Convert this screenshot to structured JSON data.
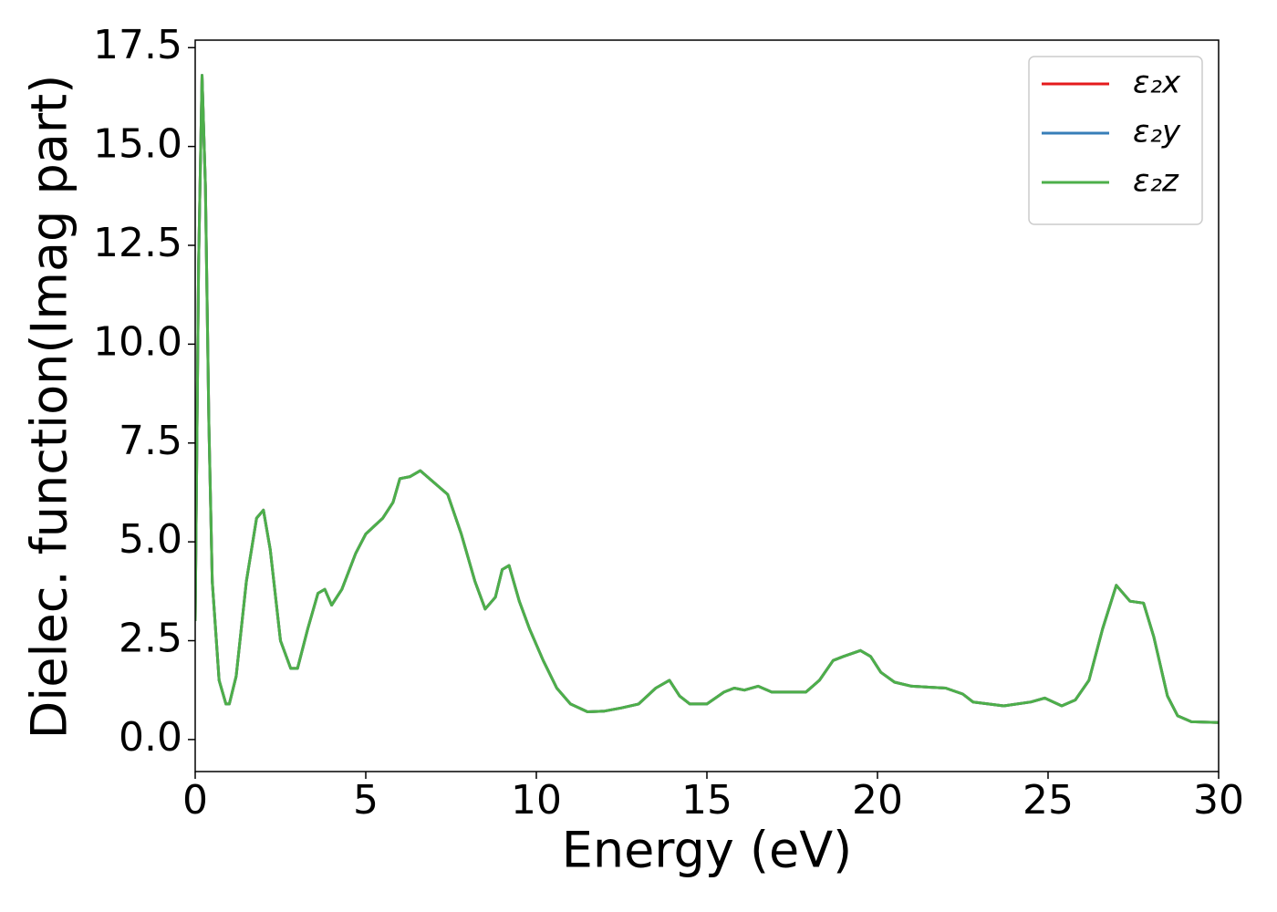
{
  "chart_data": {
    "type": "line",
    "xlabel": "Energy (eV)",
    "ylabel": "Dielec. function(Imag part)",
    "x": [
      0.0,
      0.1,
      0.2,
      0.3,
      0.4,
      0.5,
      0.7,
      0.9,
      1.0,
      1.2,
      1.5,
      1.8,
      2.0,
      2.2,
      2.5,
      2.8,
      3.0,
      3.3,
      3.6,
      3.8,
      4.0,
      4.3,
      4.7,
      5.0,
      5.5,
      5.8,
      6.0,
      6.3,
      6.6,
      7.0,
      7.4,
      7.8,
      8.2,
      8.5,
      8.8,
      9.0,
      9.2,
      9.5,
      9.8,
      10.2,
      10.6,
      11.0,
      11.5,
      12.0,
      12.5,
      13.0,
      13.5,
      13.9,
      14.2,
      14.5,
      15.0,
      15.5,
      15.8,
      16.1,
      16.5,
      16.9,
      17.5,
      17.9,
      18.3,
      18.7,
      19.0,
      19.5,
      19.8,
      20.1,
      20.5,
      21.0,
      22.0,
      22.5,
      22.8,
      23.7,
      24.5,
      24.9,
      25.4,
      25.8,
      26.2,
      26.6,
      27.0,
      27.4,
      27.8,
      28.1,
      28.5,
      28.8,
      29.2,
      30.0
    ],
    "series": [
      {
        "name": "ε₂x",
        "color": "#e41a1c",
        "values": [
          3.0,
          12.0,
          16.8,
          14.0,
          8.0,
          4.0,
          1.5,
          0.9,
          0.9,
          1.6,
          4.0,
          5.6,
          5.8,
          4.8,
          2.5,
          1.8,
          1.8,
          2.8,
          3.7,
          3.8,
          3.4,
          3.8,
          4.7,
          5.2,
          5.6,
          6.0,
          6.6,
          6.65,
          6.8,
          6.5,
          6.2,
          5.2,
          4.0,
          3.3,
          3.6,
          4.3,
          4.4,
          3.5,
          2.8,
          2.0,
          1.3,
          0.9,
          0.7,
          0.72,
          0.8,
          0.9,
          1.3,
          1.5,
          1.1,
          0.9,
          0.9,
          1.2,
          1.3,
          1.25,
          1.35,
          1.2,
          1.2,
          1.2,
          1.5,
          2.0,
          2.1,
          2.25,
          2.1,
          1.7,
          1.45,
          1.35,
          1.3,
          1.15,
          0.95,
          0.85,
          0.95,
          1.05,
          0.85,
          1.0,
          1.5,
          2.8,
          3.9,
          3.5,
          3.45,
          2.6,
          1.1,
          0.6,
          0.45,
          0.43
        ]
      },
      {
        "name": "ε₂y",
        "color": "#377eb8",
        "values": [
          3.0,
          12.0,
          16.8,
          14.0,
          8.0,
          4.0,
          1.5,
          0.9,
          0.9,
          1.6,
          4.0,
          5.6,
          5.8,
          4.8,
          2.5,
          1.8,
          1.8,
          2.8,
          3.7,
          3.8,
          3.4,
          3.8,
          4.7,
          5.2,
          5.6,
          6.0,
          6.6,
          6.65,
          6.8,
          6.5,
          6.2,
          5.2,
          4.0,
          3.3,
          3.6,
          4.3,
          4.4,
          3.5,
          2.8,
          2.0,
          1.3,
          0.9,
          0.7,
          0.72,
          0.8,
          0.9,
          1.3,
          1.5,
          1.1,
          0.9,
          0.9,
          1.2,
          1.3,
          1.25,
          1.35,
          1.2,
          1.2,
          1.2,
          1.5,
          2.0,
          2.1,
          2.25,
          2.1,
          1.7,
          1.45,
          1.35,
          1.3,
          1.15,
          0.95,
          0.85,
          0.95,
          1.05,
          0.85,
          1.0,
          1.5,
          2.8,
          3.9,
          3.5,
          3.45,
          2.6,
          1.1,
          0.6,
          0.45,
          0.43
        ]
      },
      {
        "name": "ε₂z",
        "color": "#4daf4a",
        "values": [
          3.0,
          12.0,
          16.8,
          14.0,
          8.0,
          4.0,
          1.5,
          0.9,
          0.9,
          1.6,
          4.0,
          5.6,
          5.8,
          4.8,
          2.5,
          1.8,
          1.8,
          2.8,
          3.7,
          3.8,
          3.4,
          3.8,
          4.7,
          5.2,
          5.6,
          6.0,
          6.6,
          6.65,
          6.8,
          6.5,
          6.2,
          5.2,
          4.0,
          3.3,
          3.6,
          4.3,
          4.4,
          3.5,
          2.8,
          2.0,
          1.3,
          0.9,
          0.7,
          0.72,
          0.8,
          0.9,
          1.3,
          1.5,
          1.1,
          0.9,
          0.9,
          1.2,
          1.3,
          1.25,
          1.35,
          1.2,
          1.2,
          1.2,
          1.5,
          2.0,
          2.1,
          2.25,
          2.1,
          1.7,
          1.45,
          1.35,
          1.3,
          1.15,
          0.95,
          0.85,
          0.95,
          1.05,
          0.85,
          1.0,
          1.5,
          2.8,
          3.9,
          3.5,
          3.45,
          2.6,
          1.1,
          0.6,
          0.45,
          0.43
        ]
      }
    ],
    "xlim": [
      0,
      30
    ],
    "xticks": [
      0,
      5,
      10,
      15,
      20,
      25,
      30
    ],
    "ylim": [
      -0.81,
      17.69
    ],
    "yticks": [
      {
        "value": 0,
        "label": "0.0"
      },
      2.5,
      {
        "value": 5,
        "label": "5.0"
      },
      7.5,
      {
        "value": 10,
        "label": "10.0"
      },
      12.5,
      {
        "value": 15,
        "label": "15.0"
      },
      17.5
    ],
    "grid": false,
    "legend": "upper right"
  }
}
